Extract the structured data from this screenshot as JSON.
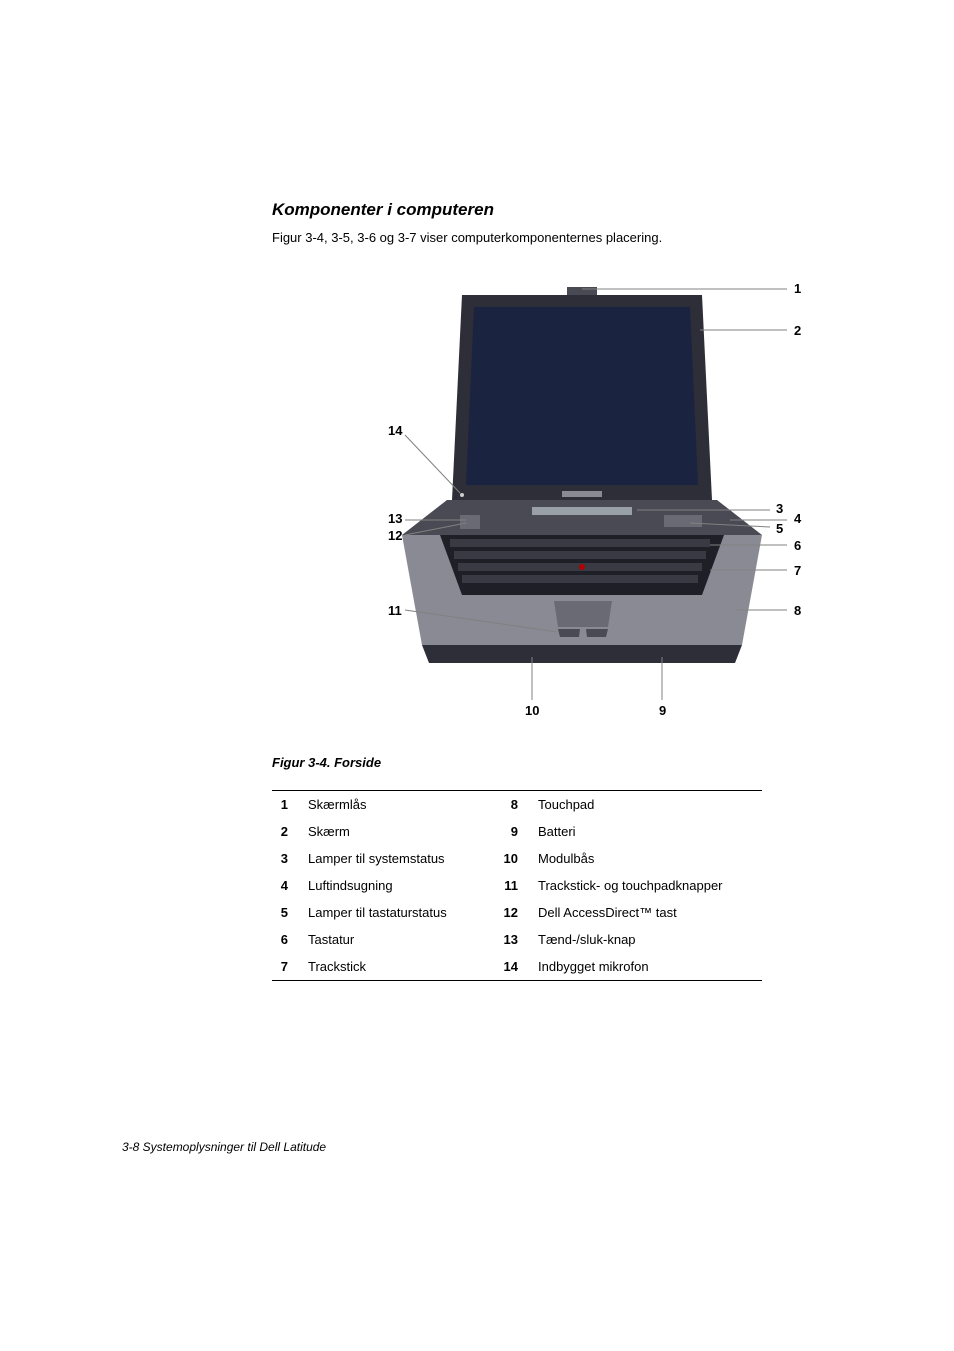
{
  "heading": "Komponenter i computeren",
  "intro": "Figur 3-4, 3-5, 3-6 og 3-7 viser computerkomponenternes placering.",
  "figure_caption": "Figur 3-4.  Forside",
  "legend": {
    "left": [
      {
        "n": "1",
        "label": "Skærmlås"
      },
      {
        "n": "2",
        "label": "Skærm"
      },
      {
        "n": "3",
        "label": "Lamper til systemstatus"
      },
      {
        "n": "4",
        "label": "Luftindsugning"
      },
      {
        "n": "5",
        "label": "Lamper til tastaturstatus"
      },
      {
        "n": "6",
        "label": "Tastatur"
      },
      {
        "n": "7",
        "label": "Trackstick"
      }
    ],
    "right": [
      {
        "n": "8",
        "label": "Touchpad"
      },
      {
        "n": "9",
        "label": "Batteri"
      },
      {
        "n": "10",
        "label": "Modulbås"
      },
      {
        "n": "11",
        "label": "Trackstick- og touchpadknapper"
      },
      {
        "n": "12",
        "label": "Dell AccessDirect™ tast"
      },
      {
        "n": "13",
        "label": "Tænd-/sluk-knap"
      },
      {
        "n": "14",
        "label": "Indbygget mikrofon"
      }
    ]
  },
  "footer": "3-8    Systemoplysninger til Dell Latitude",
  "callouts": {
    "n1": "1",
    "n2": "2",
    "n3": "3",
    "n4": "4",
    "n5": "5",
    "n6": "6",
    "n7": "7",
    "n8": "8",
    "n9": "9",
    "n10": "10",
    "n11": "11",
    "n12": "12",
    "n13": "13",
    "n14": "14"
  },
  "figure_style": {
    "laptop_screen_fill": "#1a2340",
    "laptop_body_fill": "#2e2e38",
    "laptop_body_light": "#8a8a94",
    "laptop_edge": "#4a4a55",
    "keyboard_fill": "#1f1f28",
    "leader_color": "#808080",
    "leader_width": 1,
    "callout_fontsize": 13,
    "callout_fontweight": "bold",
    "bg": "#ffffff"
  }
}
